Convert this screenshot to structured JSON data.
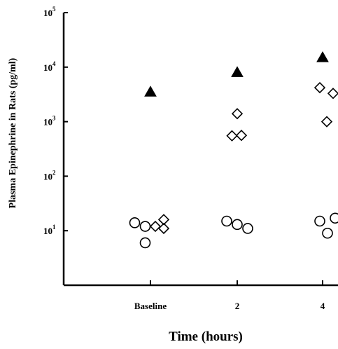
{
  "chart_data": {
    "type": "scatter",
    "title": "",
    "xlabel": "Time (hours)",
    "ylabel": "Plasma Epinephrine in Rats (pg/ml)",
    "yscale": "log",
    "ylim": [
      1,
      100000
    ],
    "y_ticks": [
      {
        "base": "10",
        "exp": "1",
        "value": 10
      },
      {
        "base": "10",
        "exp": "2",
        "value": 100
      },
      {
        "base": "10",
        "exp": "3",
        "value": 1000
      },
      {
        "base": "10",
        "exp": "4",
        "value": 10000
      },
      {
        "base": "10",
        "exp": "5",
        "value": 100000
      }
    ],
    "categories": [
      "Baseline",
      "2",
      "4"
    ],
    "grid": false,
    "series": [
      {
        "marker": "circle",
        "fill": "none",
        "points": [
          {
            "category": "Baseline",
            "offset": -0.45,
            "y": 14
          },
          {
            "category": "Baseline",
            "offset": -0.15,
            "y": 6
          },
          {
            "category": "Baseline",
            "offset": -0.15,
            "y": 12
          },
          {
            "category": "2",
            "offset": -0.3,
            "y": 15
          },
          {
            "category": "2",
            "offset": 0.0,
            "y": 13
          },
          {
            "category": "2",
            "offset": 0.3,
            "y": 11
          },
          {
            "category": "4",
            "offset": -0.08,
            "y": 15
          },
          {
            "category": "4",
            "offset": 0.14,
            "y": 9
          },
          {
            "category": "4",
            "offset": 0.36,
            "y": 17
          }
        ]
      },
      {
        "marker": "diamond",
        "fill": "none",
        "points": [
          {
            "category": "Baseline",
            "offset": 0.14,
            "y": 12
          },
          {
            "category": "Baseline",
            "offset": 0.38,
            "y": 16
          },
          {
            "category": "Baseline",
            "offset": 0.38,
            "y": 11
          },
          {
            "category": "2",
            "offset": -0.15,
            "y": 550
          },
          {
            "category": "2",
            "offset": 0.0,
            "y": 1400
          },
          {
            "category": "2",
            "offset": 0.12,
            "y": 560
          },
          {
            "category": "4",
            "offset": -0.08,
            "y": 4200
          },
          {
            "category": "4",
            "offset": 0.12,
            "y": 1000
          },
          {
            "category": "4",
            "offset": 0.3,
            "y": 3300
          }
        ]
      },
      {
        "marker": "triangle",
        "fill": "#000000",
        "points": [
          {
            "category": "Baseline",
            "offset": 0.0,
            "y": 3500
          },
          {
            "category": "2",
            "offset": 0.0,
            "y": 8000
          },
          {
            "category": "4",
            "offset": 0.0,
            "y": 15000
          }
        ]
      }
    ]
  }
}
